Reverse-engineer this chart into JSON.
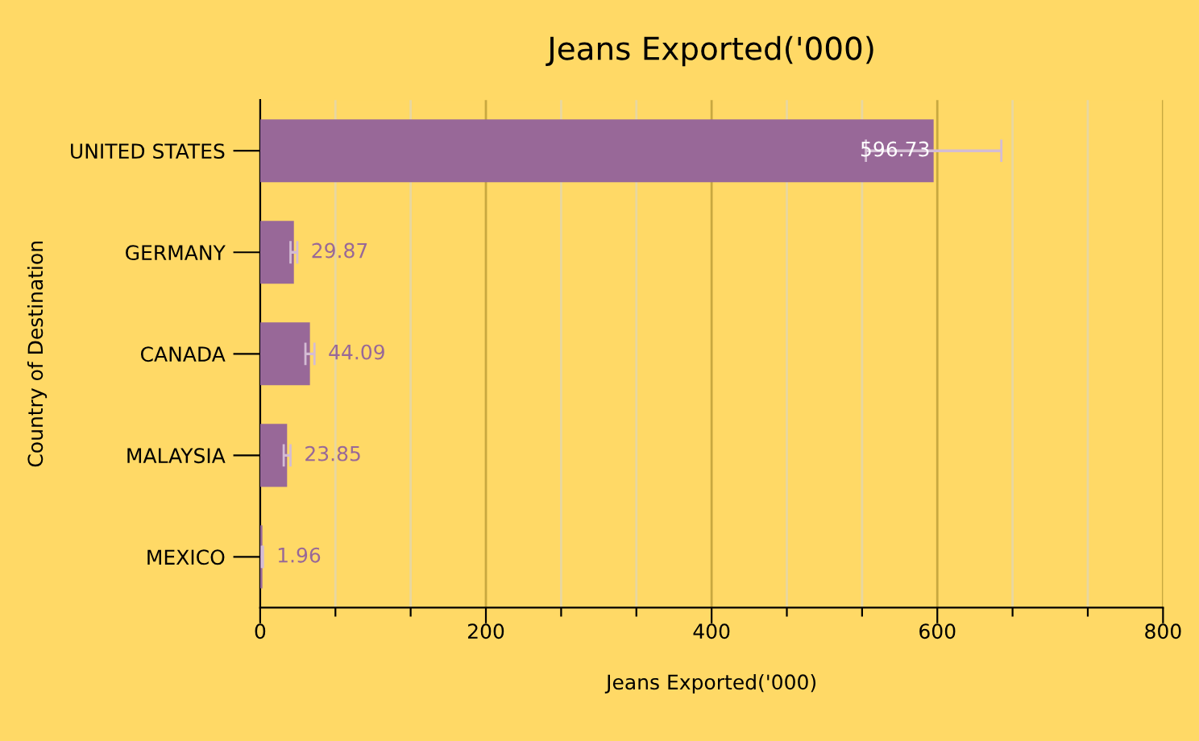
{
  "chart_data": {
    "type": "bar",
    "orientation": "horizontal",
    "title": "Jeans Exported('000)",
    "xlabel": "Jeans Exported('000)",
    "ylabel": "Country of Destination",
    "categories": [
      "UNITED STATES",
      "GERMANY",
      "CANADA",
      "MALAYSIA",
      "MEXICO"
    ],
    "values": [
      596.73,
      29.87,
      44.09,
      23.85,
      1.96
    ],
    "errors": [
      60,
      3,
      4,
      3,
      0.5
    ],
    "color": "#986898",
    "xlim": [
      0,
      800
    ],
    "xticks": [
      0,
      {
        "value": 66.67,
        "label": null
      },
      {
        "value": 133.33,
        "label": null
      },
      200,
      {
        "value": 266.67,
        "label": null
      },
      {
        "value": 333.33,
        "label": null
      },
      400,
      {
        "value": 466.67,
        "label": null
      },
      {
        "value": 533.33,
        "label": null
      },
      600,
      {
        "value": 666.67,
        "label": null
      },
      {
        "value": 733.33,
        "label": null
      },
      800
    ],
    "grid": "x",
    "data_labels": true,
    "legend": false
  }
}
